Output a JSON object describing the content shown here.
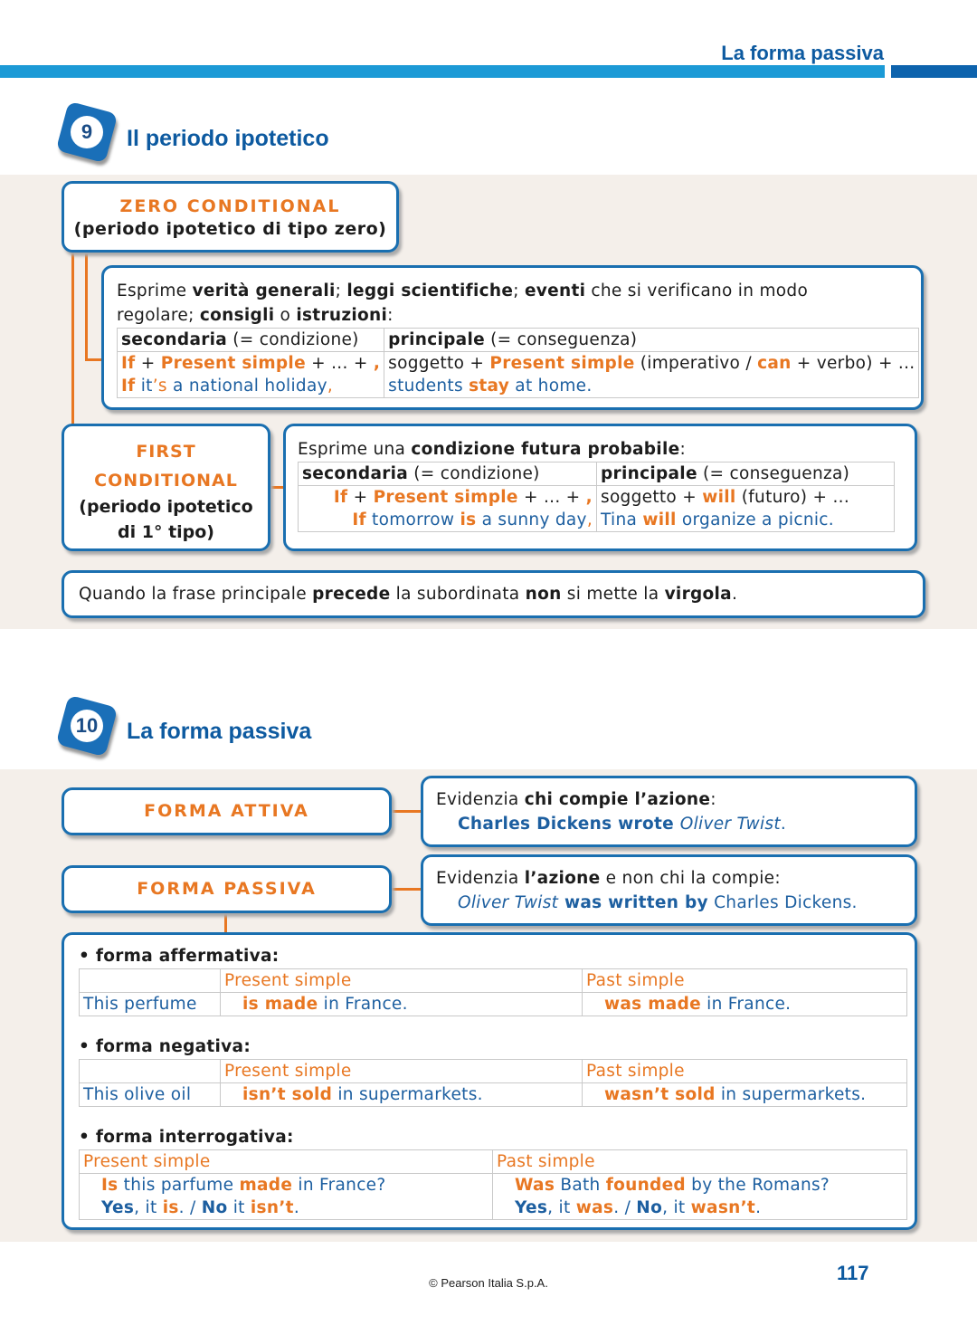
{
  "header": {
    "running_title": "La forma passiva",
    "accent": "#1c9ad6",
    "brand": "#0d5aa0",
    "orange": "#e87722"
  },
  "section9": {
    "number": "9",
    "title": "Il periodo ipotetico",
    "zero": {
      "label": "ZERO CONDITIONAL",
      "sub": "(periodo ipotetico di tipo zero)",
      "desc": [
        {
          "t": "Esprime "
        },
        {
          "t": "verità generali",
          "s": "b"
        },
        {
          "t": "; "
        },
        {
          "t": "leggi scientifiche",
          "s": "b"
        },
        {
          "t": "; "
        },
        {
          "t": "eventi",
          "s": "b"
        },
        {
          "t": " che si verificano in modo regolare; "
        },
        {
          "t": "consigli",
          "s": "b"
        },
        {
          "t": " o "
        },
        {
          "t": "istruzioni",
          "s": "b"
        },
        {
          "t": ":"
        }
      ],
      "rows": [
        [
          [
            {
              "t": "secondaria",
              "s": "b"
            },
            {
              "t": " (= condizione)"
            }
          ],
          [
            {
              "t": "principale",
              "s": "b"
            },
            {
              "t": " (= conseguenza)"
            }
          ]
        ],
        [
          [
            {
              "t": " If",
              "s": "o"
            },
            {
              "t": " + "
            },
            {
              "t": "Present simple",
              "s": "o"
            },
            {
              "t": " + ... + "
            },
            {
              "t": ",",
              "s": "o"
            }
          ],
          [
            {
              "t": "soggetto + "
            },
            {
              "t": "Present simple",
              "s": "o"
            },
            {
              "t": " (imperativo / "
            },
            {
              "t": "can",
              "s": "o"
            },
            {
              "t": " + verbo) + ..."
            }
          ]
        ],
        [
          [
            {
              "t": " If",
              "s": "o"
            },
            {
              "t": " it",
              "s": "bl"
            },
            {
              "t": "’s",
              "s": "on"
            },
            {
              "t": " a national holiday",
              "s": "bl"
            },
            {
              "t": ",",
              "s": "on"
            }
          ],
          [
            {
              "t": "students ",
              "s": "bl"
            },
            {
              "t": "stay",
              "s": "o"
            },
            {
              "t": " at home.",
              "s": "bl"
            }
          ]
        ]
      ]
    },
    "first": {
      "label1": "FIRST",
      "label2": "CONDITIONAL",
      "sub": "(periodo ipotetico di 1° tipo)",
      "desc": [
        {
          "t": "Esprime una "
        },
        {
          "t": "condizione futura probabile",
          "s": "b"
        },
        {
          "t": ":"
        }
      ],
      "rows": [
        [
          [
            {
              "t": "secondaria",
              "s": "b"
            },
            {
              "t": " (= condizione)"
            }
          ],
          [
            {
              "t": "principale",
              "s": "b"
            },
            {
              "t": " (= conseguenza)"
            }
          ]
        ],
        [
          [
            {
              "t": "If",
              "s": "o"
            },
            {
              "t": " + "
            },
            {
              "t": "Present simple",
              "s": "o"
            },
            {
              "t": " + ... + "
            },
            {
              "t": ",",
              "s": "o"
            }
          ],
          [
            {
              "t": "soggetto + "
            },
            {
              "t": "will",
              "s": "o"
            },
            {
              "t": " (futuro) + ..."
            }
          ]
        ],
        [
          [
            {
              "t": "If",
              "s": "o"
            },
            {
              "t": " tomorrow ",
              "s": "bl"
            },
            {
              "t": "is",
              "s": "o"
            },
            {
              "t": " a sunny day",
              "s": "bl"
            },
            {
              "t": ",",
              "s": "on"
            }
          ],
          [
            {
              "t": "Tina ",
              "s": "bl"
            },
            {
              "t": "will",
              "s": "o"
            },
            {
              "t": " organize a picnic.",
              "s": "bl"
            }
          ]
        ]
      ]
    },
    "note": [
      {
        "t": "Quando la frase principale "
      },
      {
        "t": "precede",
        "s": "b"
      },
      {
        "t": " la subordinata "
      },
      {
        "t": "non",
        "s": "b"
      },
      {
        "t": " si mette la "
      },
      {
        "t": "virgola",
        "s": "b"
      },
      {
        "t": "."
      }
    ]
  },
  "section10": {
    "number": "10",
    "title": "La forma passiva",
    "attiva": {
      "label": "FORMA ATTIVA",
      "desc": [
        {
          "t": "Evidenzia "
        },
        {
          "t": "chi compie l’azione",
          "s": "b"
        },
        {
          "t": ":"
        }
      ],
      "example": [
        {
          "t": "Charles Dickens wrote ",
          "s": "bb"
        },
        {
          "t": "Oliver Twist",
          "s": "i"
        },
        {
          "t": ".",
          "s": "bl"
        }
      ]
    },
    "passiva": {
      "label": "FORMA PASSIVA",
      "desc": [
        {
          "t": "Evidenzia "
        },
        {
          "t": "l’azione",
          "s": "b"
        },
        {
          "t": " e non chi la compie:"
        }
      ],
      "example": [
        {
          "t": "Oliver Twist",
          "s": "i"
        },
        {
          "t": " was written by",
          "s": "bb"
        },
        {
          "t": " Charles Dickens.",
          "s": "bl"
        }
      ]
    },
    "affermativa": {
      "heading": "forma affermativa:",
      "col1": "Present simple",
      "col2": "Past simple",
      "subject": "This perfume",
      "present": [
        {
          "t": "is made",
          "s": "o"
        },
        {
          "t": " in France.",
          "s": "bl"
        }
      ],
      "past": [
        {
          "t": "was made",
          "s": "o"
        },
        {
          "t": " in France.",
          "s": "bl"
        }
      ]
    },
    "negativa": {
      "heading": "forma negativa:",
      "col1": "Present simple",
      "col2": "Past simple",
      "subject": "This olive oil",
      "present": [
        {
          "t": "isn’t sold",
          "s": "o"
        },
        {
          "t": " in supermarkets.",
          "s": "bl"
        }
      ],
      "past": [
        {
          "t": "wasn’t sold",
          "s": "o"
        },
        {
          "t": " in supermarkets.",
          "s": "bl"
        }
      ]
    },
    "interrogativa": {
      "heading": "forma interrogativa:",
      "col1": "Present simple",
      "col2": "Past simple",
      "present_q": [
        {
          "t": "Is",
          "s": "o"
        },
        {
          "t": " this parfume ",
          "s": "bl"
        },
        {
          "t": "made",
          "s": "o"
        },
        {
          "t": " in France?",
          "s": "bl"
        }
      ],
      "present_a": [
        {
          "t": "Yes",
          "s": "bb"
        },
        {
          "t": ", it ",
          "s": "bl"
        },
        {
          "t": "is",
          "s": "o"
        },
        {
          "t": ". / ",
          "s": "bl"
        },
        {
          "t": "No",
          "s": "bb"
        },
        {
          "t": " it ",
          "s": "bl"
        },
        {
          "t": "isn’t",
          "s": "o"
        },
        {
          "t": ".",
          "s": "bl"
        }
      ],
      "past_q": [
        {
          "t": "Was",
          "s": "o"
        },
        {
          "t": " Bath ",
          "s": "bl"
        },
        {
          "t": "founded",
          "s": "o"
        },
        {
          "t": " by the Romans?",
          "s": "bl"
        }
      ],
      "past_a": [
        {
          "t": "Yes",
          "s": "bb"
        },
        {
          "t": ", it ",
          "s": "bl"
        },
        {
          "t": "was",
          "s": "o"
        },
        {
          "t": ". / ",
          "s": "bl"
        },
        {
          "t": "No",
          "s": "bb"
        },
        {
          "t": ", it ",
          "s": "bl"
        },
        {
          "t": "wasn’t",
          "s": "o"
        },
        {
          "t": ".",
          "s": "bl"
        }
      ]
    }
  },
  "footer": {
    "copyright": "© Pearson Italia S.p.A.",
    "page": "117"
  }
}
